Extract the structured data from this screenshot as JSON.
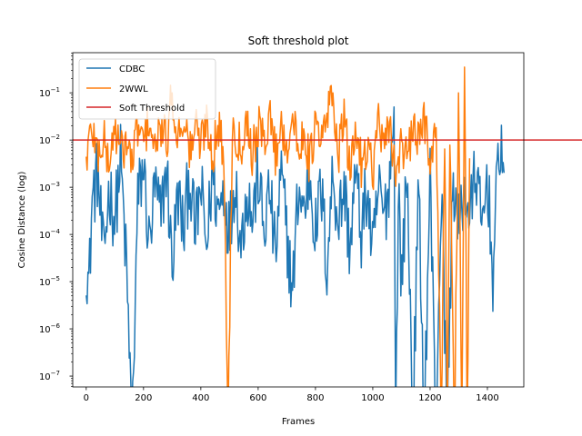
{
  "chart_data": {
    "type": "line",
    "title": "Soft threshold plot",
    "xlabel": "Frames",
    "ylabel": "Cosine Distance (log)",
    "xlim": [
      -47,
      1527
    ],
    "ylim_log10": [
      -7.23,
      -0.15
    ],
    "yscale": "log",
    "xticks": [
      0,
      200,
      400,
      600,
      800,
      1000,
      1200,
      1400
    ],
    "yticks": [
      {
        "base": "10",
        "exp": "−7",
        "log10": -7
      },
      {
        "base": "10",
        "exp": "−6",
        "log10": -6
      },
      {
        "base": "10",
        "exp": "−5",
        "log10": -5
      },
      {
        "base": "10",
        "exp": "−4",
        "log10": -4
      },
      {
        "base": "10",
        "exp": "−3",
        "log10": -3
      },
      {
        "base": "10",
        "exp": "−2",
        "log10": -2
      },
      {
        "base": "10",
        "exp": "−1",
        "log10": -1
      }
    ],
    "legend_position": "upper-left",
    "threshold": {
      "name": "Soft Threshold",
      "value": 0.01,
      "color": "#d62728"
    },
    "series": [
      {
        "name": "CDBC",
        "color": "#1f77b4",
        "n_frames": 1460,
        "envelope": [
          {
            "x": 0,
            "y": 3e-05
          },
          {
            "x": 10,
            "y": 8e-06
          },
          {
            "x": 20,
            "y": 0.0005
          },
          {
            "x": 40,
            "y": 0.002
          },
          {
            "x": 60,
            "y": 3e-05
          },
          {
            "x": 80,
            "y": 0.001
          },
          {
            "x": 100,
            "y": 0.0002
          },
          {
            "x": 120,
            "y": 0.004
          },
          {
            "x": 140,
            "y": 2e-05
          },
          {
            "x": 160,
            "y": 1e-08
          },
          {
            "x": 180,
            "y": 0.0005
          },
          {
            "x": 200,
            "y": 0.003
          },
          {
            "x": 220,
            "y": 5e-05
          },
          {
            "x": 240,
            "y": 0.001
          },
          {
            "x": 260,
            "y": 0.0002
          },
          {
            "x": 280,
            "y": 0.003
          },
          {
            "x": 300,
            "y": 2e-05
          },
          {
            "x": 320,
            "y": 0.0008
          },
          {
            "x": 340,
            "y": 0.0001
          },
          {
            "x": 360,
            "y": 0.002
          },
          {
            "x": 380,
            "y": 0.0001
          },
          {
            "x": 400,
            "y": 0.001
          },
          {
            "x": 420,
            "y": 5e-05
          },
          {
            "x": 440,
            "y": 0.002
          },
          {
            "x": 460,
            "y": 0.0003
          },
          {
            "x": 480,
            "y": 0.001
          },
          {
            "x": 500,
            "y": 0.0001
          },
          {
            "x": 520,
            "y": 0.002
          },
          {
            "x": 540,
            "y": 5e-05
          },
          {
            "x": 560,
            "y": 0.001
          },
          {
            "x": 580,
            "y": 0.0002
          },
          {
            "x": 600,
            "y": 0.002
          },
          {
            "x": 620,
            "y": 0.0001
          },
          {
            "x": 640,
            "y": 0.001
          },
          {
            "x": 660,
            "y": 3e-05
          },
          {
            "x": 680,
            "y": 0.002
          },
          {
            "x": 700,
            "y": 0.0001
          },
          {
            "x": 720,
            "y": 5e-06
          },
          {
            "x": 740,
            "y": 0.001
          },
          {
            "x": 760,
            "y": 0.0003
          },
          {
            "x": 780,
            "y": 0.002
          },
          {
            "x": 800,
            "y": 0.0001
          },
          {
            "x": 820,
            "y": 0.001
          },
          {
            "x": 840,
            "y": 2e-05
          },
          {
            "x": 860,
            "y": 0.002
          },
          {
            "x": 880,
            "y": 0.0002
          },
          {
            "x": 900,
            "y": 0.001
          },
          {
            "x": 920,
            "y": 5e-05
          },
          {
            "x": 940,
            "y": 0.002
          },
          {
            "x": 960,
            "y": 0.0001
          },
          {
            "x": 980,
            "y": 0.001
          },
          {
            "x": 1000,
            "y": 3e-05
          },
          {
            "x": 1020,
            "y": 0.001
          },
          {
            "x": 1040,
            "y": 0.0002
          },
          {
            "x": 1060,
            "y": 0.002
          },
          {
            "x": 1075,
            "y": 0.05
          },
          {
            "x": 1080,
            "y": 1e-08
          },
          {
            "x": 1090,
            "y": 0.001
          },
          {
            "x": 1100,
            "y": 1e-05
          },
          {
            "x": 1120,
            "y": 0.002
          },
          {
            "x": 1140,
            "y": 1e-08
          },
          {
            "x": 1160,
            "y": 0.001
          },
          {
            "x": 1180,
            "y": 1e-08
          },
          {
            "x": 1200,
            "y": 0.002
          },
          {
            "x": 1220,
            "y": 1e-08
          },
          {
            "x": 1240,
            "y": 0.001
          },
          {
            "x": 1260,
            "y": 1e-08
          },
          {
            "x": 1280,
            "y": 0.002
          },
          {
            "x": 1300,
            "y": 0.0001
          },
          {
            "x": 1320,
            "y": 0.001
          },
          {
            "x": 1340,
            "y": 0.0002
          },
          {
            "x": 1360,
            "y": 0.003
          },
          {
            "x": 1380,
            "y": 0.0001
          },
          {
            "x": 1400,
            "y": 0.002
          },
          {
            "x": 1420,
            "y": 1e-05
          },
          {
            "x": 1440,
            "y": 0.01
          },
          {
            "x": 1460,
            "y": 0.003
          }
        ]
      },
      {
        "name": "2WWL",
        "color": "#ff7f0e",
        "n_frames": 1340,
        "envelope": [
          {
            "x": 0,
            "y": 0.004
          },
          {
            "x": 20,
            "y": 0.02
          },
          {
            "x": 40,
            "y": 0.005
          },
          {
            "x": 60,
            "y": 0.01
          },
          {
            "x": 80,
            "y": 0.003
          },
          {
            "x": 100,
            "y": 0.02
          },
          {
            "x": 120,
            "y": 0.005
          },
          {
            "x": 140,
            "y": 0.01
          },
          {
            "x": 160,
            "y": 0.003
          },
          {
            "x": 180,
            "y": 0.02
          },
          {
            "x": 200,
            "y": 0.008
          },
          {
            "x": 220,
            "y": 0.03
          },
          {
            "x": 240,
            "y": 0.005
          },
          {
            "x": 260,
            "y": 0.02
          },
          {
            "x": 280,
            "y": 0.008
          },
          {
            "x": 300,
            "y": 0.1
          },
          {
            "x": 320,
            "y": 0.01
          },
          {
            "x": 340,
            "y": 0.04
          },
          {
            "x": 360,
            "y": 0.005
          },
          {
            "x": 380,
            "y": 0.02
          },
          {
            "x": 400,
            "y": 0.008
          },
          {
            "x": 420,
            "y": 0.03
          },
          {
            "x": 440,
            "y": 0.005
          },
          {
            "x": 460,
            "y": 0.02
          },
          {
            "x": 480,
            "y": 0.005
          },
          {
            "x": 495,
            "y": 1e-08
          },
          {
            "x": 510,
            "y": 0.02
          },
          {
            "x": 540,
            "y": 0.008
          },
          {
            "x": 560,
            "y": 0.03
          },
          {
            "x": 580,
            "y": 0.005
          },
          {
            "x": 600,
            "y": 0.02
          },
          {
            "x": 620,
            "y": 0.008
          },
          {
            "x": 640,
            "y": 0.04
          },
          {
            "x": 660,
            "y": 0.005
          },
          {
            "x": 680,
            "y": 0.02
          },
          {
            "x": 700,
            "y": 0.008
          },
          {
            "x": 720,
            "y": 0.03
          },
          {
            "x": 740,
            "y": 0.005
          },
          {
            "x": 760,
            "y": 0.02
          },
          {
            "x": 780,
            "y": 0.003
          },
          {
            "x": 800,
            "y": 0.02
          },
          {
            "x": 820,
            "y": 0.008
          },
          {
            "x": 840,
            "y": 0.03
          },
          {
            "x": 860,
            "y": 0.1
          },
          {
            "x": 880,
            "y": 0.005
          },
          {
            "x": 900,
            "y": 0.03
          },
          {
            "x": 920,
            "y": 0.002
          },
          {
            "x": 940,
            "y": 0.02
          },
          {
            "x": 960,
            "y": 0.003
          },
          {
            "x": 980,
            "y": 0.01
          },
          {
            "x": 1000,
            "y": 0.002
          },
          {
            "x": 1020,
            "y": 0.03
          },
          {
            "x": 1040,
            "y": 0.005
          },
          {
            "x": 1060,
            "y": 0.02
          },
          {
            "x": 1080,
            "y": 0.002
          },
          {
            "x": 1100,
            "y": 0.01
          },
          {
            "x": 1120,
            "y": 0.003
          },
          {
            "x": 1140,
            "y": 0.02
          },
          {
            "x": 1160,
            "y": 0.008
          },
          {
            "x": 1180,
            "y": 0.03
          },
          {
            "x": 1200,
            "y": 0.005
          },
          {
            "x": 1220,
            "y": 0.02
          },
          {
            "x": 1240,
            "y": 1e-08
          },
          {
            "x": 1250,
            "y": 0.03
          },
          {
            "x": 1260,
            "y": 1e-08
          },
          {
            "x": 1270,
            "y": 0.02
          },
          {
            "x": 1285,
            "y": 1e-08
          },
          {
            "x": 1300,
            "y": 0.1
          },
          {
            "x": 1310,
            "y": 1e-08
          },
          {
            "x": 1320,
            "y": 0.35
          },
          {
            "x": 1330,
            "y": 1e-08
          },
          {
            "x": 1340,
            "y": 0.1
          }
        ]
      }
    ]
  }
}
